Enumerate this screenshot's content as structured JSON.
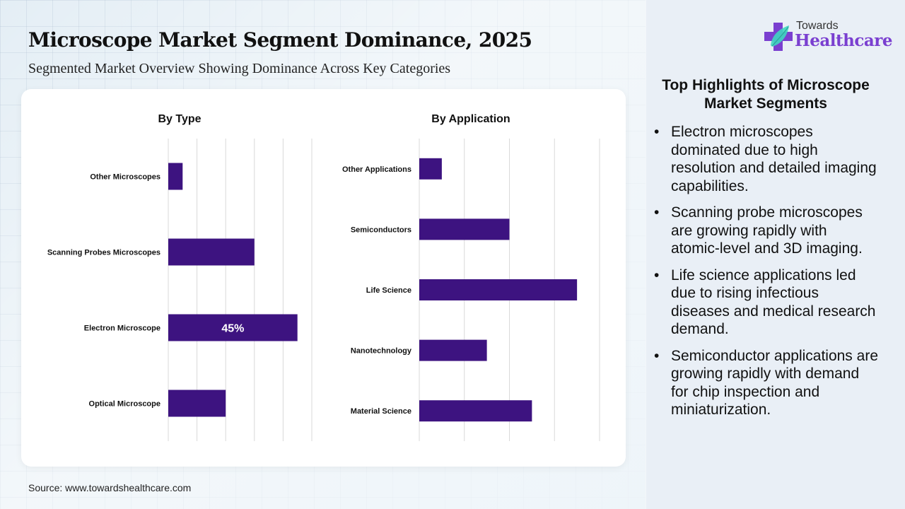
{
  "header": {
    "title": "Microscope Market Segment Dominance, 2025",
    "subtitle": "Segmented Market Overview Showing Dominance Across Key Categories"
  },
  "logo": {
    "line1": "Towards",
    "line2": "Healthcare",
    "icon": "medical-cross-leaf-icon"
  },
  "colors": {
    "bar": "#3d1380",
    "grid": "#d9d9d9",
    "brand": "#7a3fd0",
    "leaf": "#3fd6c0"
  },
  "chart_data": [
    {
      "type": "bar",
      "orientation": "horizontal",
      "title": "By Type",
      "categories": [
        "Other Microscopes",
        "Scanning Probes Microscopes",
        "Electron Microscope",
        "Optical Microscope"
      ],
      "values": [
        5,
        30,
        45,
        20
      ],
      "unit": "%",
      "data_labels": [
        null,
        null,
        "45%",
        null
      ],
      "xlim": [
        0,
        50
      ],
      "grid_step": 10,
      "grid": true,
      "xlabel": "",
      "ylabel": ""
    },
    {
      "type": "bar",
      "orientation": "horizontal",
      "title": "By Application",
      "categories": [
        "Other Applications",
        "Semiconductors",
        "Life Science",
        "Nanotechnology",
        "Material Science"
      ],
      "values": [
        5,
        20,
        35,
        15,
        25
      ],
      "unit": "%",
      "data_labels": [
        null,
        null,
        null,
        null,
        null
      ],
      "xlim": [
        0,
        40
      ],
      "grid_step": 10,
      "grid": true,
      "xlabel": "",
      "ylabel": ""
    }
  ],
  "highlights": {
    "title": "Top Highlights of Microscope Market Segments",
    "items": [
      "Electron microscopes dominated due to high resolution and detailed imaging capabilities.",
      "Scanning probe microscopes are growing rapidly with atomic-level and 3D imaging.",
      "Life science applications led due to rising infectious diseases and medical research demand.",
      "Semiconductor applications are growing rapidly with demand for chip inspection and miniaturization."
    ],
    "bullet": "•"
  },
  "footer": {
    "source": "Source: www.towardshealthcare.com"
  }
}
